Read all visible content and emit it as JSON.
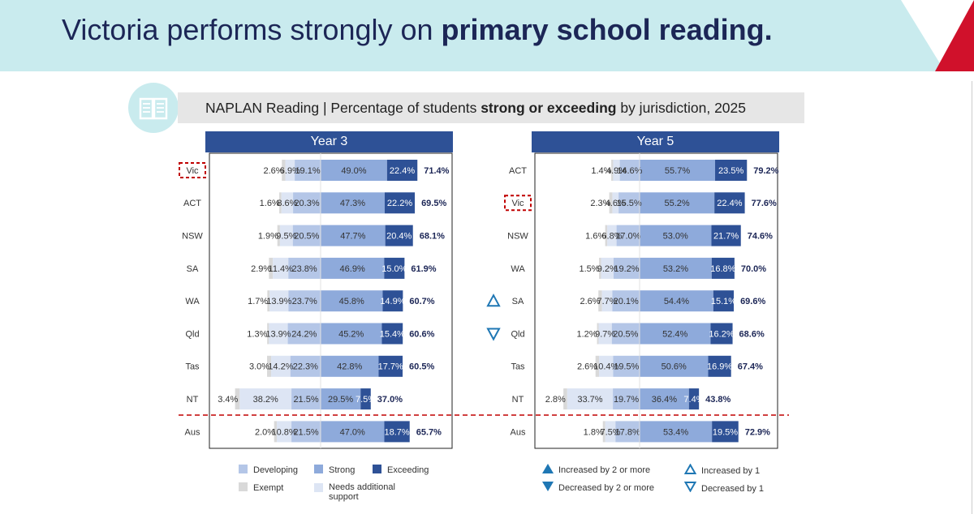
{
  "header": {
    "title_prefix": "Victoria performs strongly on ",
    "title_bold": "primary school reading."
  },
  "subtitle": {
    "prefix": "NAPLAN Reading | Percentage of students ",
    "bold": "strong or exceeding",
    "suffix": " by jurisdiction, 2025"
  },
  "icons": {
    "book": "book-icon"
  },
  "colors": {
    "exempt": "#d9d9d9",
    "needs_support": "#dde5f4",
    "developing": "#b4c6e7",
    "strong": "#8eaadb",
    "exceeding": "#2e5196",
    "banner": "#c9ebee",
    "highlight": "#c00000",
    "arrow": "#1f77b4"
  },
  "legend": {
    "developing": "Developing",
    "strong": "Strong",
    "exceeding": "Exceeding",
    "exempt": "Exempt",
    "needs_support": "Needs additional support",
    "inc2": "Increased by 2 or more",
    "dec2": "Decreased by 2 or more",
    "inc1": "Increased by 1",
    "dec1": "Decreased by 1"
  },
  "chart_data": [
    {
      "type": "bar",
      "stacked": true,
      "title": "Year 3",
      "segments": [
        "Exempt",
        "Needs additional support",
        "Developing",
        "Strong",
        "Exceeding"
      ],
      "rows": [
        {
          "label": "Vic",
          "highlight": true,
          "values": [
            2.6,
            6.9,
            19.1,
            49.0,
            22.4
          ],
          "value_labels": [
            "2.6%",
            "6.9%",
            "19.1%",
            "49.0%",
            "22.4%"
          ],
          "total": "71.4%",
          "change": ""
        },
        {
          "label": "ACT",
          "values": [
            1.6,
            8.6,
            20.3,
            47.3,
            22.2
          ],
          "value_labels": [
            "1.6%",
            "8.6%",
            "20.3%",
            "47.3%",
            "22.2%"
          ],
          "total": "69.5%",
          "change": ""
        },
        {
          "label": "NSW",
          "values": [
            1.9,
            9.5,
            20.5,
            47.7,
            20.4
          ],
          "value_labels": [
            "1.9%",
            "9.5%",
            "20.5%",
            "47.7%",
            "20.4%"
          ],
          "total": "68.1%",
          "change": ""
        },
        {
          "label": "SA",
          "values": [
            2.9,
            11.4,
            23.8,
            46.9,
            15.0
          ],
          "value_labels": [
            "2.9%",
            "11.4%",
            "23.8%",
            "46.9%",
            "15.0%"
          ],
          "total": "61.9%",
          "change": ""
        },
        {
          "label": "WA",
          "values": [
            1.7,
            13.9,
            23.7,
            45.8,
            14.9
          ],
          "value_labels": [
            "1.7%",
            "13.9%",
            "23.7%",
            "45.8%",
            "14.9%"
          ],
          "total": "60.7%",
          "change": ""
        },
        {
          "label": "Qld",
          "values": [
            1.3,
            13.9,
            24.2,
            45.2,
            15.4
          ],
          "value_labels": [
            "1.3%",
            "13.9%",
            "24.2%",
            "45.2%",
            "15.4%"
          ],
          "total": "60.6%",
          "change": ""
        },
        {
          "label": "Tas",
          "values": [
            3.0,
            14.2,
            22.3,
            42.8,
            17.7
          ],
          "value_labels": [
            "3.0%",
            "14.2%",
            "22.3%",
            "42.8%",
            "17.7%"
          ],
          "total": "60.5%",
          "change": ""
        },
        {
          "label": "NT",
          "values": [
            3.4,
            38.2,
            21.5,
            29.5,
            7.5
          ],
          "value_labels": [
            "3.4%",
            "38.2%",
            "21.5%",
            "29.5%",
            "7.5%"
          ],
          "total": "37.0%",
          "change": ""
        },
        {
          "label": "Aus",
          "values": [
            2.0,
            10.8,
            21.5,
            47.0,
            18.7
          ],
          "value_labels": [
            "2.0%",
            "10.8%",
            "21.5%",
            "47.0%",
            "18.7%"
          ],
          "total": "65.7%",
          "change": ""
        }
      ]
    },
    {
      "type": "bar",
      "stacked": true,
      "title": "Year 5",
      "segments": [
        "Exempt",
        "Needs additional support",
        "Developing",
        "Strong",
        "Exceeding"
      ],
      "rows": [
        {
          "label": "ACT",
          "values": [
            1.4,
            4.9,
            14.6,
            55.7,
            23.5
          ],
          "value_labels": [
            "1.4%",
            "4.9%",
            "14.6%",
            "55.7%",
            "23.5%"
          ],
          "total": "79.2%",
          "change": ""
        },
        {
          "label": "Vic",
          "highlight": true,
          "values": [
            2.3,
            4.6,
            15.5,
            55.2,
            22.4
          ],
          "value_labels": [
            "2.3%",
            "4.6%",
            "15.5%",
            "55.2%",
            "22.4%"
          ],
          "total": "77.6%",
          "change": ""
        },
        {
          "label": "NSW",
          "values": [
            1.6,
            6.8,
            17.0,
            53.0,
            21.7
          ],
          "value_labels": [
            "1.6%",
            "6.8%",
            "17.0%",
            "53.0%",
            "21.7%"
          ],
          "total": "74.6%",
          "change": ""
        },
        {
          "label": "WA",
          "values": [
            1.5,
            9.2,
            19.2,
            53.2,
            16.8
          ],
          "value_labels": [
            "1.5%",
            "9.2%",
            "19.2%",
            "53.2%",
            "16.8%"
          ],
          "total": "70.0%",
          "change": ""
        },
        {
          "label": "SA",
          "values": [
            2.6,
            7.7,
            20.1,
            54.4,
            15.1
          ],
          "value_labels": [
            "2.6%",
            "7.7%",
            "20.1%",
            "54.4%",
            "15.1%"
          ],
          "total": "69.6%",
          "change": "up1"
        },
        {
          "label": "Qld",
          "values": [
            1.2,
            9.7,
            20.5,
            52.4,
            16.2
          ],
          "value_labels": [
            "1.2%",
            "9.7%",
            "20.5%",
            "52.4%",
            "16.2%"
          ],
          "total": "68.6%",
          "change": "down1"
        },
        {
          "label": "Tas",
          "values": [
            2.6,
            10.4,
            19.5,
            50.6,
            16.9
          ],
          "value_labels": [
            "2.6%",
            "10.4%",
            "19.5%",
            "50.6%",
            "16.9%"
          ],
          "total": "67.4%",
          "change": ""
        },
        {
          "label": "NT",
          "values": [
            2.8,
            33.7,
            19.7,
            36.4,
            7.4
          ],
          "value_labels": [
            "2.8%",
            "33.7%",
            "19.7%",
            "36.4%",
            "7.4%"
          ],
          "total": "43.8%",
          "change": ""
        },
        {
          "label": "Aus",
          "values": [
            1.8,
            7.5,
            17.8,
            53.4,
            19.5
          ],
          "value_labels": [
            "1.8%",
            "7.5%",
            "17.8%",
            "53.4%",
            "19.5%"
          ],
          "total": "72.9%",
          "change": ""
        }
      ]
    }
  ]
}
